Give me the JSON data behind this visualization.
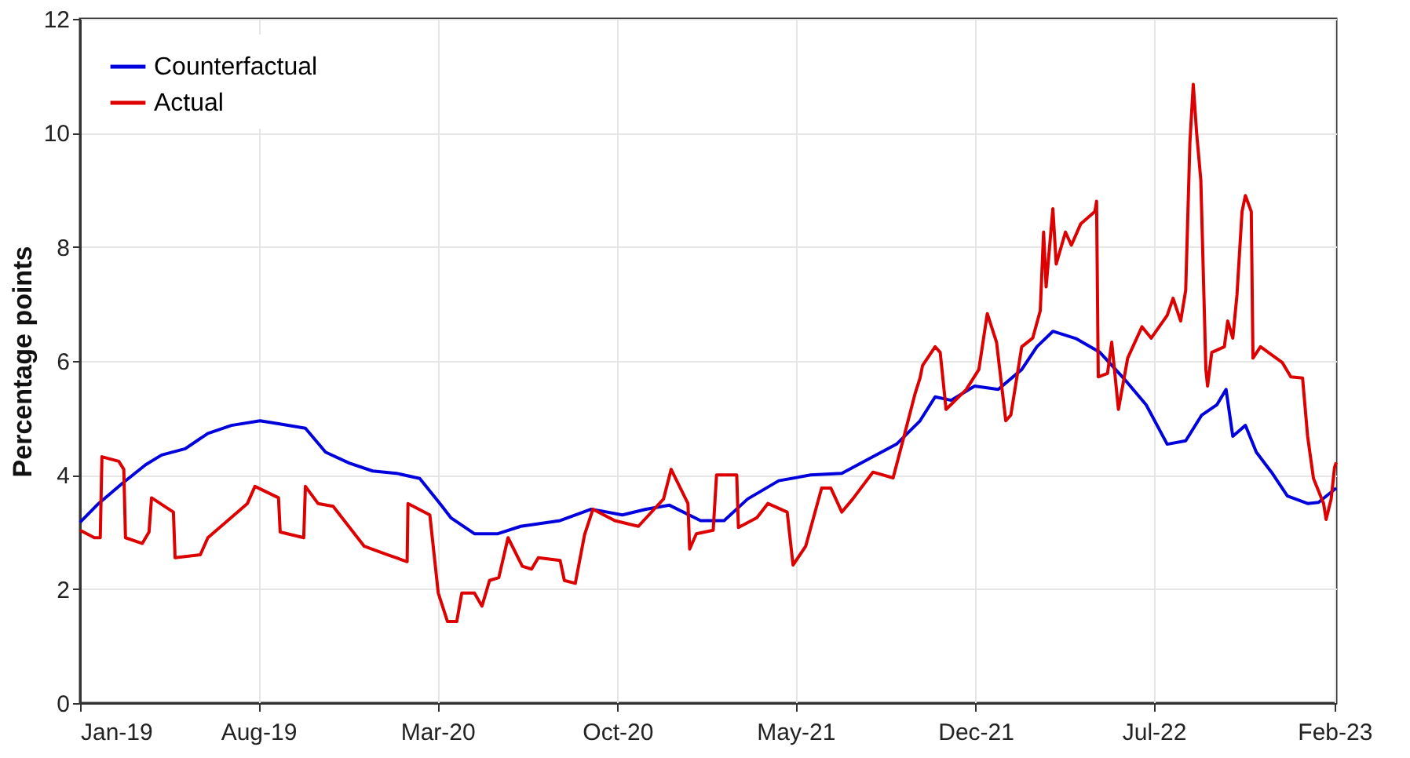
{
  "chart_data": {
    "type": "line",
    "ylabel": "Percentage points",
    "ylim": [
      0,
      12
    ],
    "yticks": [
      0,
      2,
      4,
      6,
      8,
      10,
      12
    ],
    "xlim": [
      "2019-01-01",
      "2023-02-03"
    ],
    "xticks": [
      {
        "value": "2019-01-01",
        "label": "Jan-19"
      },
      {
        "value": "2019-08-01",
        "label": "Aug-19"
      },
      {
        "value": "2020-03-01",
        "label": "Mar-20"
      },
      {
        "value": "2020-10-01",
        "label": "Oct-20"
      },
      {
        "value": "2021-05-01",
        "label": "May-21"
      },
      {
        "value": "2021-12-01",
        "label": "Dec-21"
      },
      {
        "value": "2022-07-01",
        "label": "Jul-22"
      },
      {
        "value": "2023-02-01",
        "label": "Feb-23"
      }
    ],
    "grid": true,
    "legend": "top left",
    "line_style": "solid",
    "marker": "none",
    "series": [
      {
        "name": "Counterfactual",
        "color": "#0000dd",
        "x": [
          "2019-01-01",
          "2019-01-23",
          "2019-02-20",
          "2019-03-20",
          "2019-04-08",
          "2019-05-06",
          "2019-06-02",
          "2019-06-30",
          "2019-08-03",
          "2019-08-25",
          "2019-09-26",
          "2019-10-20",
          "2019-11-17",
          "2019-12-15",
          "2020-01-12",
          "2020-02-09",
          "2020-03-04",
          "2020-03-17",
          "2020-04-14",
          "2020-05-12",
          "2020-06-08",
          "2020-07-25",
          "2020-08-31",
          "2020-10-07",
          "2020-11-04",
          "2020-12-02",
          "2021-01-08",
          "2021-02-05",
          "2021-03-05",
          "2021-04-11",
          "2021-05-19",
          "2021-06-25",
          "2021-08-01",
          "2021-08-29",
          "2021-09-26",
          "2021-10-14",
          "2021-11-02",
          "2021-11-30",
          "2021-12-28",
          "2022-01-25",
          "2022-02-12",
          "2022-03-03",
          "2022-03-31",
          "2022-04-28",
          "2022-05-26",
          "2022-06-22",
          "2022-07-17",
          "2022-08-08",
          "2022-08-27",
          "2022-09-14",
          "2022-09-25",
          "2022-10-03",
          "2022-10-18",
          "2022-10-31",
          "2022-11-18",
          "2022-12-07",
          "2022-12-31",
          "2023-01-13",
          "2023-02-03"
        ],
        "values": [
          3.17,
          3.5,
          3.85,
          4.18,
          4.35,
          4.46,
          4.73,
          4.87,
          4.95,
          4.9,
          4.82,
          4.4,
          4.21,
          4.07,
          4.03,
          3.94,
          3.5,
          3.25,
          2.97,
          2.97,
          3.1,
          3.2,
          3.4,
          3.3,
          3.4,
          3.47,
          3.2,
          3.2,
          3.58,
          3.9,
          4.0,
          4.03,
          4.32,
          4.54,
          4.95,
          5.37,
          5.31,
          5.56,
          5.5,
          5.85,
          6.25,
          6.52,
          6.39,
          6.15,
          5.7,
          5.23,
          4.54,
          4.6,
          5.05,
          5.23,
          5.5,
          4.68,
          4.87,
          4.4,
          4.05,
          3.63,
          3.5,
          3.52,
          3.77
        ]
      },
      {
        "name": "Actual",
        "color": "#dd0000",
        "x": [
          "2019-01-01",
          "2019-01-18",
          "2019-01-25",
          "2019-01-27",
          "2019-02-16",
          "2019-02-22",
          "2019-02-24",
          "2019-03-16",
          "2019-03-24",
          "2019-03-27",
          "2019-04-22",
          "2019-04-24",
          "2019-05-24",
          "2019-06-02",
          "2019-07-19",
          "2019-07-28",
          "2019-08-25",
          "2019-08-27",
          "2019-09-24",
          "2019-09-26",
          "2019-10-11",
          "2019-10-29",
          "2019-12-05",
          "2020-01-02",
          "2020-01-25",
          "2020-01-26",
          "2020-02-21",
          "2020-03-02",
          "2020-03-13",
          "2020-03-24",
          "2020-03-30",
          "2020-04-14",
          "2020-04-23",
          "2020-05-02",
          "2020-05-13",
          "2020-05-24",
          "2020-06-10",
          "2020-06-21",
          "2020-06-29",
          "2020-07-25",
          "2020-07-30",
          "2020-08-12",
          "2020-08-23",
          "2020-09-02",
          "2020-09-28",
          "2020-10-26",
          "2020-11-25",
          "2020-12-04",
          "2020-12-15",
          "2020-12-24",
          "2020-12-26",
          "2021-01-03",
          "2021-01-23",
          "2021-01-27",
          "2021-02-20",
          "2021-02-22",
          "2021-03-16",
          "2021-03-29",
          "2021-04-21",
          "2021-04-28",
          "2021-05-13",
          "2021-06-01",
          "2021-06-12",
          "2021-06-25",
          "2021-07-08",
          "2021-08-01",
          "2021-08-25",
          "2021-09-07",
          "2021-09-20",
          "2021-09-26",
          "2021-09-29",
          "2021-10-14",
          "2021-10-20",
          "2021-10-27",
          "2021-11-20",
          "2021-12-05",
          "2021-12-15",
          "2021-12-26",
          "2022-01-06",
          "2022-01-12",
          "2022-01-25",
          "2022-02-07",
          "2022-02-16",
          "2022-02-20",
          "2022-02-23",
          "2022-03-03",
          "2022-03-07",
          "2022-03-18",
          "2022-03-25",
          "2022-04-05",
          "2022-04-22",
          "2022-04-24",
          "2022-04-26",
          "2022-05-07",
          "2022-05-12",
          "2022-05-20",
          "2022-05-31",
          "2022-06-17",
          "2022-06-28",
          "2022-07-17",
          "2022-07-24",
          "2022-08-02",
          "2022-08-08",
          "2022-08-13",
          "2022-08-17",
          "2022-08-21",
          "2022-08-26",
          "2022-09-01",
          "2022-09-03",
          "2022-09-08",
          "2022-09-23",
          "2022-09-27",
          "2022-10-03",
          "2022-10-08",
          "2022-10-14",
          "2022-10-18",
          "2022-10-25",
          "2022-10-27",
          "2022-11-05",
          "2022-12-01",
          "2022-12-11",
          "2022-12-25",
          "2022-12-31",
          "2023-01-07",
          "2023-01-19",
          "2023-01-22",
          "2023-01-28",
          "2023-02-01",
          "2023-02-03"
        ],
        "values": [
          3.03,
          2.9,
          2.9,
          4.32,
          4.24,
          4.1,
          2.9,
          2.8,
          3.0,
          3.6,
          3.35,
          2.55,
          2.6,
          2.9,
          3.5,
          3.8,
          3.6,
          3.0,
          2.9,
          3.8,
          3.5,
          3.45,
          2.75,
          2.6,
          2.48,
          3.5,
          3.3,
          1.93,
          1.43,
          1.43,
          1.93,
          1.93,
          1.7,
          2.15,
          2.2,
          2.9,
          2.4,
          2.35,
          2.55,
          2.5,
          2.15,
          2.1,
          2.95,
          3.4,
          3.2,
          3.1,
          3.58,
          4.1,
          3.77,
          3.5,
          2.7,
          2.97,
          3.03,
          4.0,
          4.0,
          3.08,
          3.25,
          3.5,
          3.35,
          2.42,
          2.75,
          3.77,
          3.77,
          3.35,
          3.58,
          4.05,
          3.95,
          4.68,
          5.42,
          5.7,
          5.92,
          6.25,
          6.15,
          5.15,
          5.5,
          5.85,
          6.83,
          6.33,
          4.95,
          5.05,
          6.25,
          6.4,
          6.88,
          8.26,
          7.3,
          8.67,
          7.7,
          8.26,
          8.03,
          8.4,
          8.62,
          8.8,
          5.72,
          5.78,
          6.33,
          5.15,
          6.05,
          6.6,
          6.4,
          6.8,
          7.1,
          6.7,
          7.24,
          9.83,
          10.85,
          10.0,
          9.17,
          5.85,
          5.56,
          6.15,
          6.25,
          6.7,
          6.4,
          7.16,
          8.62,
          8.9,
          8.62,
          6.05,
          6.25,
          5.97,
          5.72,
          5.7,
          4.68,
          3.94,
          3.5,
          3.22,
          3.58,
          4.13,
          4.22
        ]
      }
    ]
  }
}
